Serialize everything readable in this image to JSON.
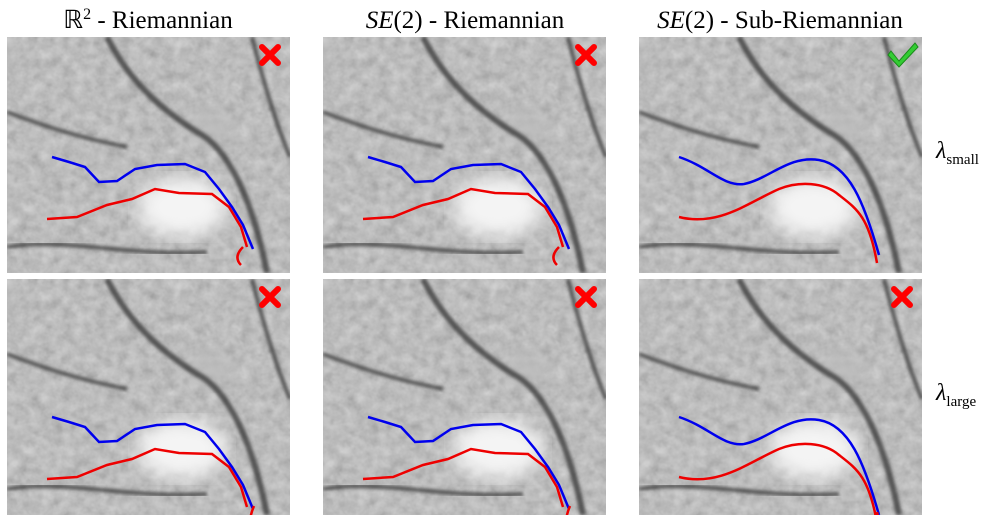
{
  "columns": [
    {
      "symbol": "ℝ",
      "superscript": "2",
      "text": " - Riemannian"
    },
    {
      "symbol": "SE",
      "argument": "(2)",
      "text": " - Riemannian"
    },
    {
      "symbol": "SE",
      "argument": "(2)",
      "text": " - Sub-Riemannian"
    }
  ],
  "rows": [
    {
      "symbol": "λ",
      "subscript": "small"
    },
    {
      "symbol": "λ",
      "subscript": "large"
    }
  ]
}
